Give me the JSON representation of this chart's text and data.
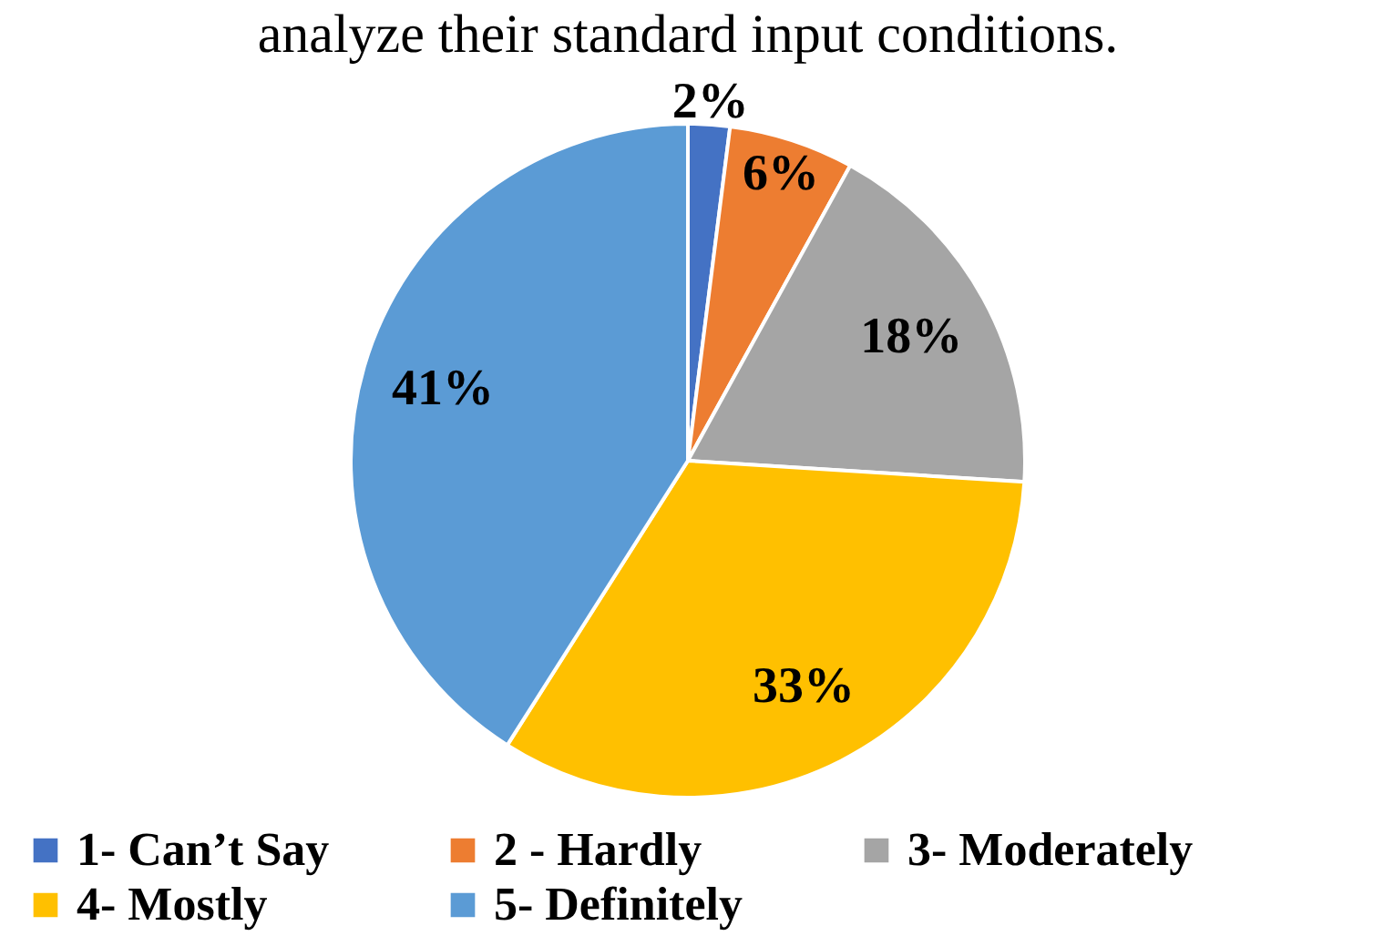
{
  "chart_data": {
    "type": "pie",
    "title": "analyze their standard input conditions.",
    "categories": [
      "1- Can’t Say",
      "2 - Hardly",
      "3- Moderately",
      "4- Mostly",
      "5- Definitely"
    ],
    "values": [
      2,
      6,
      18,
      33,
      41
    ],
    "value_labels": [
      "2%",
      "6%",
      "18%",
      "33%",
      "41%"
    ],
    "colors": [
      "#4472c4",
      "#ed7d31",
      "#a5a5a5",
      "#ffc000",
      "#5b9bd5"
    ],
    "legend": "bottom"
  }
}
